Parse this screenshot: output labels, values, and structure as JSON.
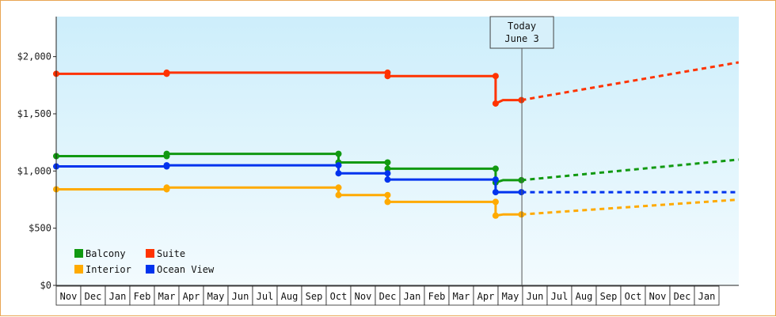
{
  "chart_data": {
    "type": "line",
    "months": [
      "Nov",
      "Dec",
      "Jan",
      "Feb",
      "Mar",
      "Apr",
      "May",
      "Jun",
      "Jul",
      "Aug",
      "Sep",
      "Oct",
      "Nov",
      "Dec",
      "Jan",
      "Feb",
      "Mar",
      "Apr",
      "May",
      "Jun",
      "Jul",
      "Aug",
      "Sep",
      "Oct",
      "Nov",
      "Dec",
      "Jan"
    ],
    "y_ticks": [
      "$0",
      "$500",
      "$1,000",
      "$1,500",
      "$2,000"
    ],
    "y_tick_values": [
      0,
      500,
      1000,
      1500,
      2000
    ],
    "ylim": [
      0,
      2350
    ],
    "grid": false,
    "legend_position": "bottom-left",
    "today": {
      "line1": "Today",
      "line2": "June 3",
      "month_index": 18.97
    },
    "series": [
      {
        "name": "Balcony",
        "color": "#119911",
        "points": [
          [
            0,
            1130
          ],
          [
            4.5,
            1130
          ],
          [
            4.5,
            1150
          ],
          [
            11.5,
            1150
          ],
          [
            11.5,
            1075
          ],
          [
            13.5,
            1075
          ],
          [
            13.5,
            1020
          ],
          [
            17.9,
            1020
          ],
          [
            17.9,
            900
          ],
          [
            18.2,
            920
          ],
          [
            18.95,
            920
          ]
        ],
        "projection": [
          [
            18.95,
            920
          ],
          [
            27.8,
            1100
          ]
        ]
      },
      {
        "name": "Suite",
        "color": "#ff3300",
        "points": [
          [
            0,
            1850
          ],
          [
            4.5,
            1850
          ],
          [
            4.5,
            1860
          ],
          [
            13.5,
            1860
          ],
          [
            13.5,
            1830
          ],
          [
            17.9,
            1830
          ],
          [
            17.9,
            1590
          ],
          [
            18.2,
            1620
          ],
          [
            18.95,
            1620
          ]
        ],
        "projection": [
          [
            18.95,
            1620
          ],
          [
            27.8,
            1950
          ]
        ]
      },
      {
        "name": "Interior",
        "color": "#ffaa00",
        "points": [
          [
            0,
            840
          ],
          [
            4.5,
            840
          ],
          [
            4.5,
            855
          ],
          [
            11.5,
            855
          ],
          [
            11.5,
            790
          ],
          [
            13.5,
            790
          ],
          [
            13.5,
            730
          ],
          [
            17.9,
            730
          ],
          [
            17.9,
            610
          ],
          [
            18.2,
            620
          ],
          [
            18.95,
            620
          ]
        ],
        "projection": [
          [
            18.95,
            620
          ],
          [
            27.8,
            750
          ]
        ]
      },
      {
        "name": "Ocean View",
        "color": "#0033ee",
        "points": [
          [
            0,
            1040
          ],
          [
            4.5,
            1040
          ],
          [
            4.5,
            1050
          ],
          [
            11.5,
            1050
          ],
          [
            11.5,
            980
          ],
          [
            13.5,
            980
          ],
          [
            13.5,
            925
          ],
          [
            17.9,
            925
          ],
          [
            17.9,
            815
          ],
          [
            18.95,
            815
          ]
        ],
        "projection": [
          [
            18.95,
            815
          ],
          [
            27.8,
            815
          ]
        ]
      }
    ]
  }
}
